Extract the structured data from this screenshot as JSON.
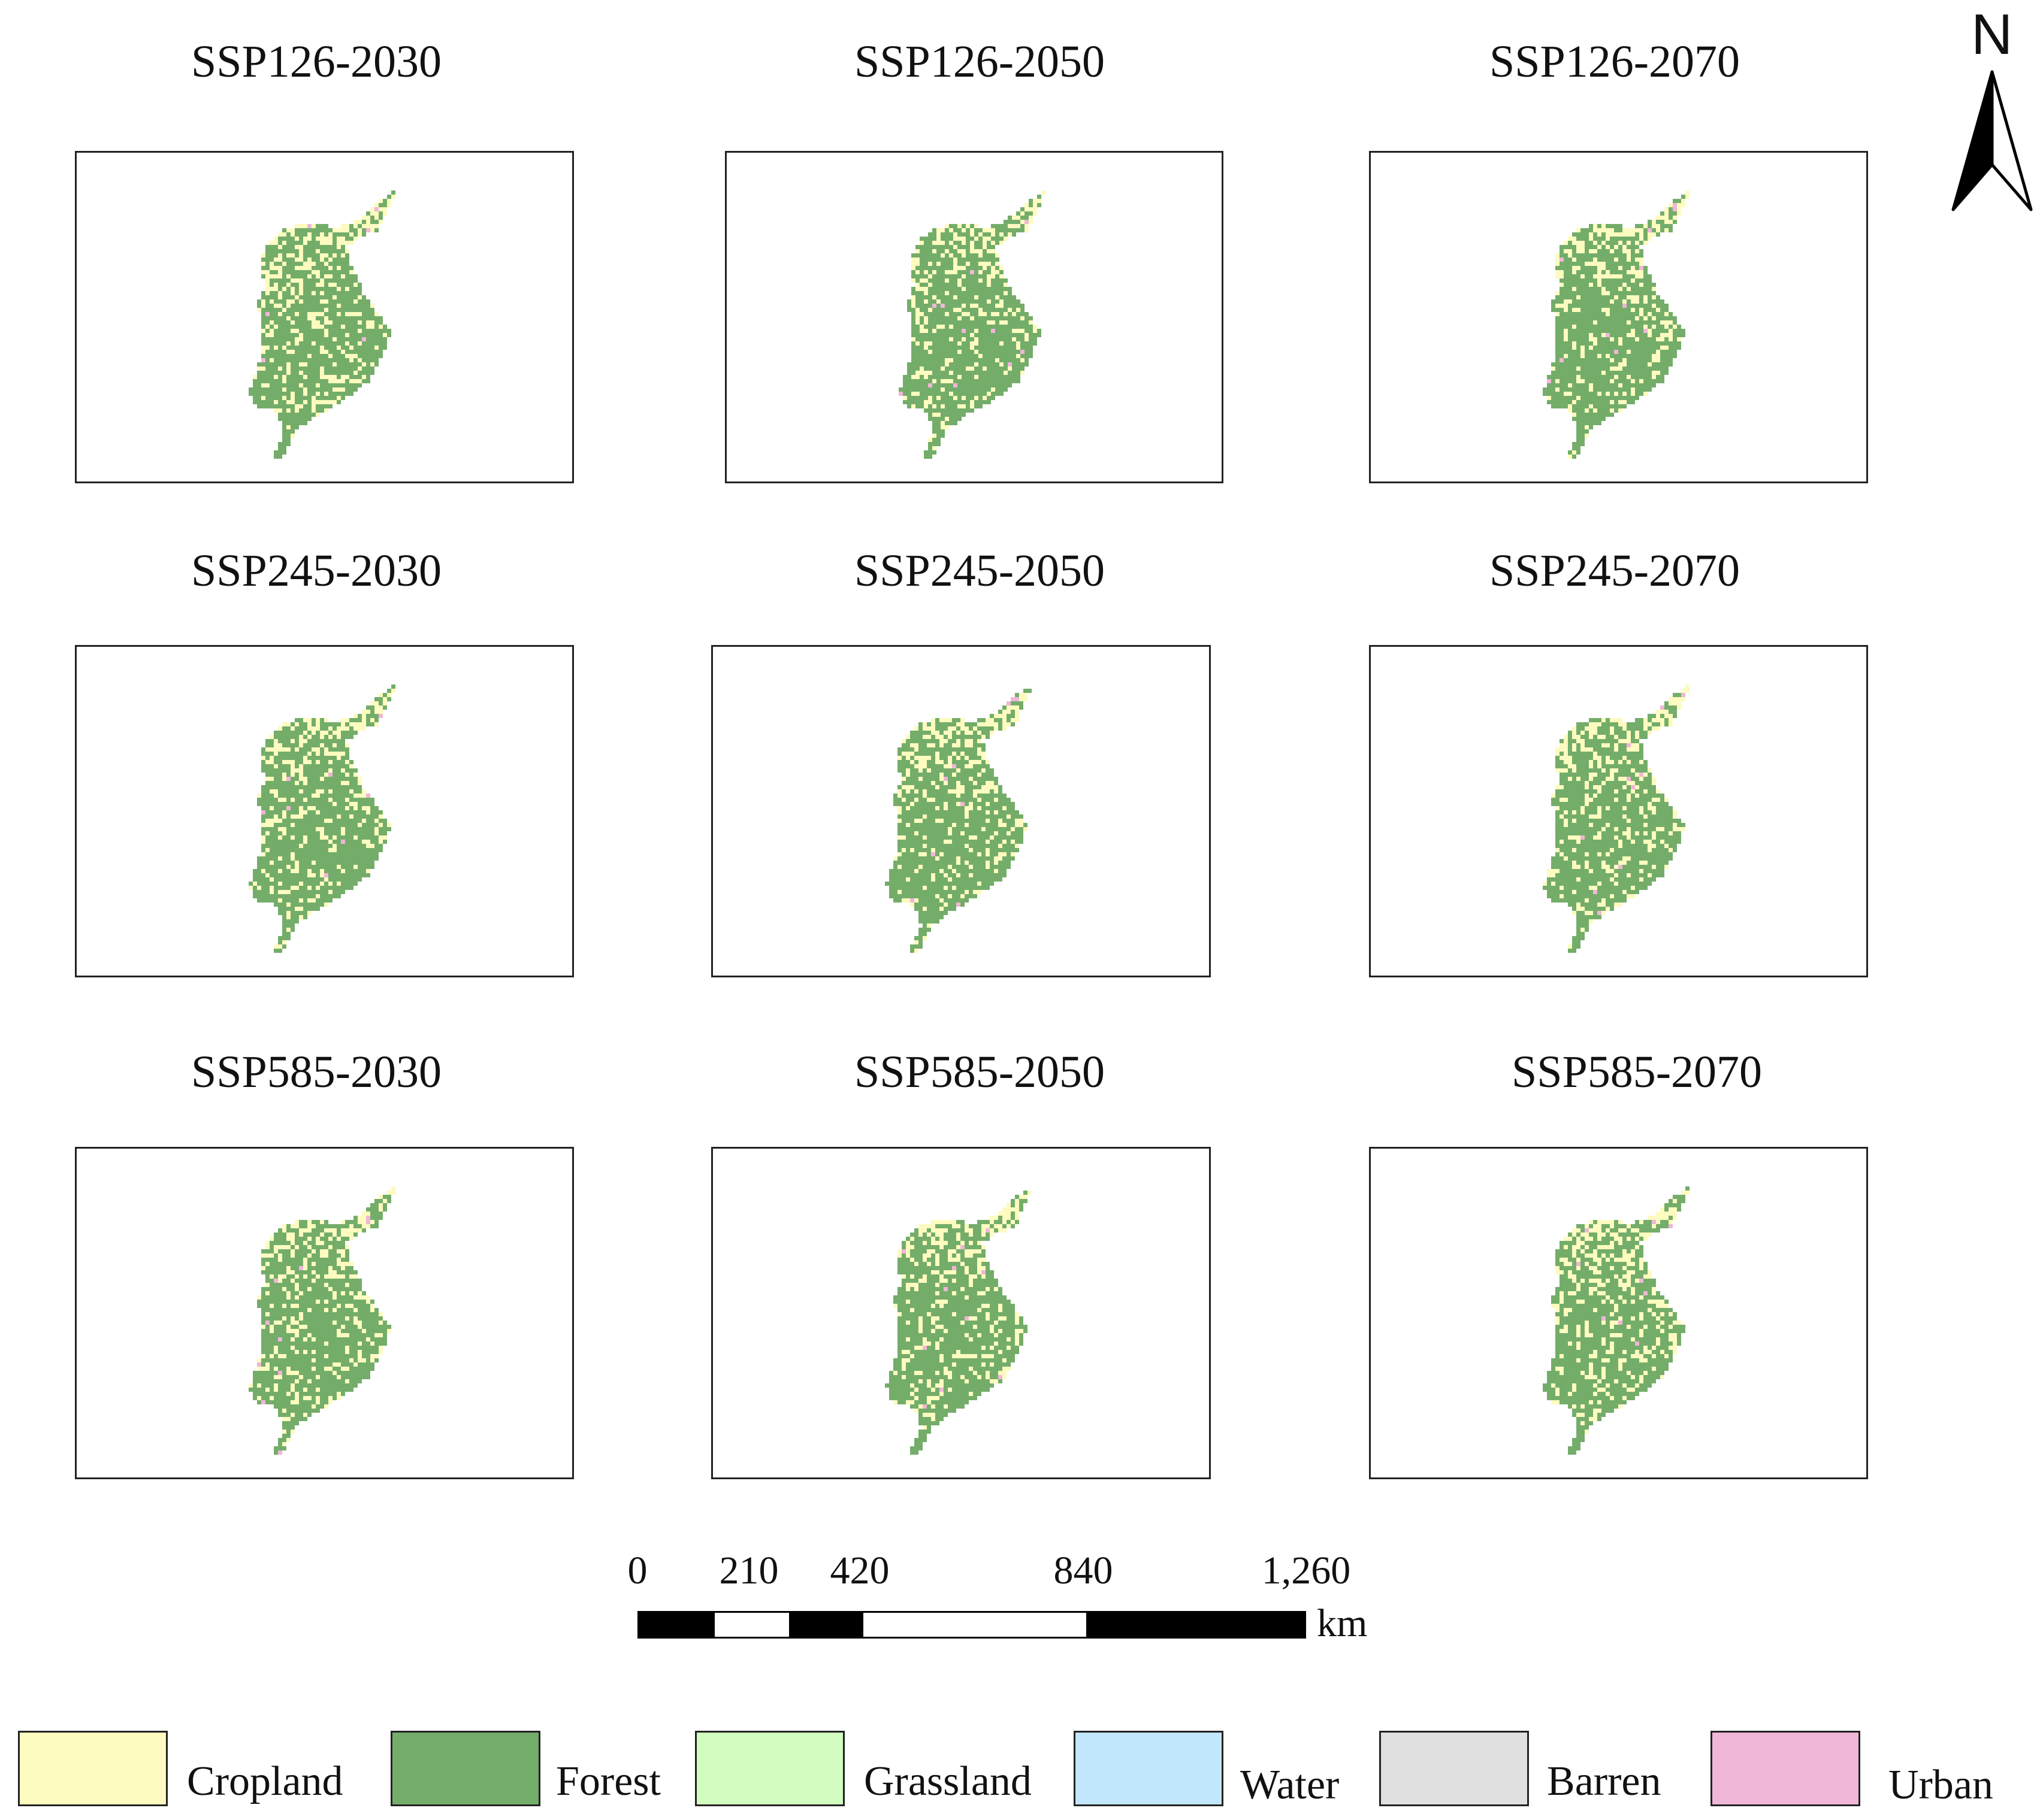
{
  "panels": [
    {
      "title": "SSP126-2030"
    },
    {
      "title": "SSP126-2050"
    },
    {
      "title": "SSP126-2070"
    },
    {
      "title": "SSP245-2030"
    },
    {
      "title": "SSP245-2050"
    },
    {
      "title": "SSP245-2070"
    },
    {
      "title": "SSP585-2030"
    },
    {
      "title": "SSP585-2050"
    },
    {
      "title": "SSP585-2070"
    }
  ],
  "north": {
    "label": "N"
  },
  "scale": {
    "ticks": [
      "0",
      "210",
      "420",
      "840",
      "1,260"
    ],
    "unit": "km"
  },
  "legend": [
    {
      "label": "Cropland",
      "color": "#fdfbbf"
    },
    {
      "label": "Forest",
      "color": "#74ad6a"
    },
    {
      "label": "Grassland",
      "color": "#d3fcc1"
    },
    {
      "label": "Water",
      "color": "#c2e6fb"
    },
    {
      "label": "Barren",
      "color": "#e0e0e0"
    },
    {
      "label": "Urban",
      "color": "#f0b6d7"
    }
  ]
}
